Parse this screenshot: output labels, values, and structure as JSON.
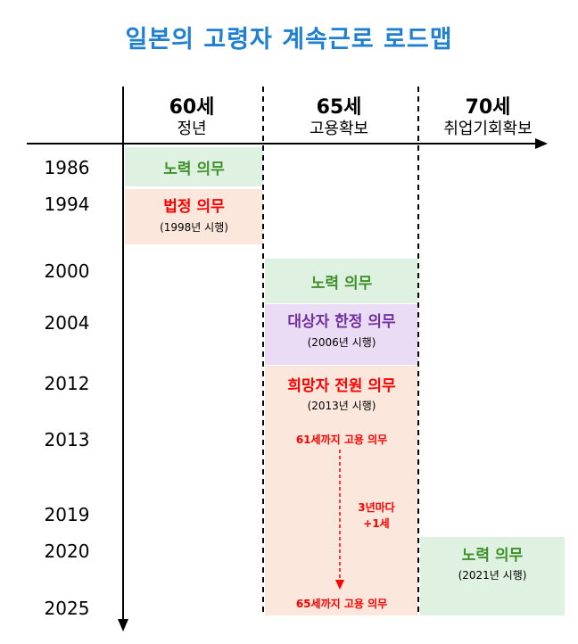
{
  "title": "일본의 고령자 계속근로 로드맵",
  "columns": [
    {
      "age": "60세",
      "label": "정년"
    },
    {
      "age": "65세",
      "label": "고용확보"
    },
    {
      "age": "70세",
      "label": "취업기회확보"
    }
  ],
  "years": [
    "1986",
    "1994",
    "2000",
    "2004",
    "2012",
    "2013",
    "2019",
    "2020",
    "2025"
  ],
  "events": {
    "e1986": {
      "label": "노력 의무"
    },
    "e1994": {
      "label": "법정 의무",
      "note": "(1998년 시행)"
    },
    "e2000": {
      "label": "노력 의무"
    },
    "e2004": {
      "label": "대상자 한정 의무",
      "note": "(2006년 시행)"
    },
    "e2012": {
      "label": "희망자 전원 의무",
      "note": "(2013년 시행)"
    },
    "e2013": {
      "label": "61세까지 고용 의무"
    },
    "e2019": {
      "label_line1": "3년마다",
      "label_line2": "+1세"
    },
    "e2025": {
      "label": "65세까지 고용 의무"
    },
    "e2020": {
      "label": "노력 의무",
      "note": "(2021년 시행)"
    }
  },
  "colors": {
    "title": "#1f7fd0",
    "green_fill": "#dff2e1",
    "peach_fill": "#fbe7db",
    "purple_fill": "#eadcf5",
    "green_text": "#3f8f2a",
    "red_text": "#ff0000",
    "purple_text": "#7030a0"
  }
}
